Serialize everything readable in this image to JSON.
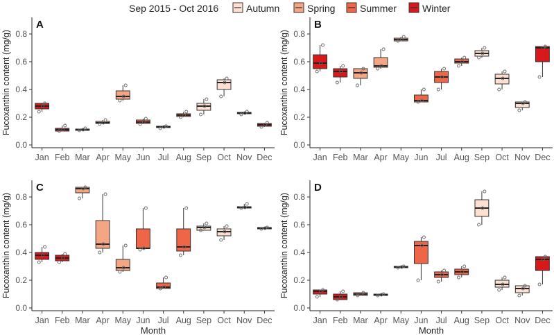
{
  "chart_data": {
    "type": "boxplot",
    "legend": {
      "title": "Sep 2015 - Oct 2016",
      "position": "top",
      "entries": [
        {
          "name": "Autumn",
          "color": "#FDE0D2"
        },
        {
          "name": "Spring",
          "color": "#F4A583"
        },
        {
          "name": "Summer",
          "color": "#EF6548"
        },
        {
          "name": "Winter",
          "color": "#D7191C"
        }
      ]
    },
    "categories": [
      "Jan",
      "Feb",
      "Mar",
      "Apr",
      "May",
      "Jun",
      "Jul",
      "Aug",
      "Sep",
      "Oct",
      "Nov",
      "Dec"
    ],
    "month_season": [
      "Winter",
      "Winter",
      "Spring",
      "Spring",
      "Spring",
      "Summer",
      "Summer",
      "Summer",
      "Autumn",
      "Autumn",
      "Autumn",
      "Winter"
    ],
    "ylabel": "Fucoxanthin content (mg/g)",
    "xlabel": "Month",
    "ylim": [
      -0.02,
      0.92
    ],
    "yticks": [
      "0.0",
      "0.2",
      "0.4",
      "0.6",
      "0.8"
    ],
    "ytick_values": [
      0,
      0.2,
      0.4,
      0.6,
      0.8
    ],
    "panels": [
      {
        "label": "A",
        "boxes": [
          {
            "q1": 0.26,
            "med": 0.28,
            "q3": 0.3,
            "wlo": 0.24,
            "whi": 0.3,
            "pts": [
              0.24,
              0.28,
              0.3
            ]
          },
          {
            "q1": 0.1,
            "med": 0.11,
            "q3": 0.12,
            "wlo": 0.1,
            "whi": 0.14,
            "pts": [
              0.1,
              0.11,
              0.14
            ]
          },
          {
            "q1": 0.105,
            "med": 0.11,
            "q3": 0.115,
            "wlo": 0.1,
            "whi": 0.12,
            "pts": [
              0.105,
              0.11,
              0.12
            ]
          },
          {
            "q1": 0.155,
            "med": 0.16,
            "q3": 0.17,
            "wlo": 0.15,
            "whi": 0.18,
            "pts": [
              0.15,
              0.16,
              0.18
            ]
          },
          {
            "q1": 0.33,
            "med": 0.35,
            "q3": 0.39,
            "wlo": 0.32,
            "whi": 0.43,
            "pts": [
              0.32,
              0.35,
              0.43
            ]
          },
          {
            "q1": 0.155,
            "med": 0.165,
            "q3": 0.18,
            "wlo": 0.15,
            "whi": 0.19,
            "pts": [
              0.15,
              0.165,
              0.19
            ]
          },
          {
            "q1": 0.125,
            "med": 0.13,
            "q3": 0.135,
            "wlo": 0.12,
            "whi": 0.135,
            "pts": [
              0.12,
              0.13,
              0.135
            ]
          },
          {
            "q1": 0.205,
            "med": 0.215,
            "q3": 0.225,
            "wlo": 0.2,
            "whi": 0.24,
            "pts": [
              0.2,
              0.215,
              0.24
            ]
          },
          {
            "q1": 0.25,
            "med": 0.28,
            "q3": 0.3,
            "wlo": 0.22,
            "whi": 0.33,
            "pts": [
              0.22,
              0.28,
              0.33
            ]
          },
          {
            "q1": 0.4,
            "med": 0.45,
            "q3": 0.47,
            "wlo": 0.35,
            "whi": 0.48,
            "pts": [
              0.35,
              0.45,
              0.48
            ]
          },
          {
            "q1": 0.225,
            "med": 0.23,
            "q3": 0.235,
            "wlo": 0.22,
            "whi": 0.24,
            "pts": [
              0.22,
              0.23,
              0.24
            ]
          },
          {
            "q1": 0.135,
            "med": 0.145,
            "q3": 0.155,
            "wlo": 0.13,
            "whi": 0.16,
            "pts": [
              0.13,
              0.145,
              0.16
            ]
          }
        ]
      },
      {
        "label": "B",
        "boxes": [
          {
            "q1": 0.55,
            "med": 0.59,
            "q3": 0.65,
            "wlo": 0.53,
            "whi": 0.72,
            "pts": [
              0.53,
              0.59,
              0.72
            ]
          },
          {
            "q1": 0.49,
            "med": 0.53,
            "q3": 0.55,
            "wlo": 0.45,
            "whi": 0.57,
            "pts": [
              0.45,
              0.53,
              0.57
            ]
          },
          {
            "q1": 0.48,
            "med": 0.52,
            "q3": 0.55,
            "wlo": 0.43,
            "whi": 0.55,
            "pts": [
              0.43,
              0.52,
              0.55
            ]
          },
          {
            "q1": 0.56,
            "med": 0.57,
            "q3": 0.63,
            "wlo": 0.55,
            "whi": 0.69,
            "pts": [
              0.55,
              0.57,
              0.69
            ]
          },
          {
            "q1": 0.75,
            "med": 0.76,
            "q3": 0.77,
            "wlo": 0.75,
            "whi": 0.78,
            "pts": [
              0.75,
              0.76,
              0.78
            ]
          },
          {
            "q1": 0.31,
            "med": 0.32,
            "q3": 0.36,
            "wlo": 0.31,
            "whi": 0.4,
            "pts": [
              0.31,
              0.32,
              0.4
            ]
          },
          {
            "q1": 0.45,
            "med": 0.49,
            "q3": 0.53,
            "wlo": 0.4,
            "whi": 0.55,
            "pts": [
              0.4,
              0.49,
              0.55
            ]
          },
          {
            "q1": 0.59,
            "med": 0.6,
            "q3": 0.62,
            "wlo": 0.57,
            "whi": 0.63,
            "pts": [
              0.57,
              0.6,
              0.63
            ]
          },
          {
            "q1": 0.64,
            "med": 0.66,
            "q3": 0.68,
            "wlo": 0.63,
            "whi": 0.7,
            "pts": [
              0.63,
              0.66,
              0.7
            ]
          },
          {
            "q1": 0.44,
            "med": 0.48,
            "q3": 0.51,
            "wlo": 0.4,
            "whi": 0.53,
            "pts": [
              0.4,
              0.48,
              0.53
            ]
          },
          {
            "q1": 0.27,
            "med": 0.3,
            "q3": 0.31,
            "wlo": 0.25,
            "whi": 0.31,
            "pts": [
              0.25,
              0.3,
              0.31
            ]
          },
          {
            "q1": 0.6,
            "med": 0.7,
            "q3": 0.71,
            "wlo": 0.49,
            "whi": 0.71,
            "pts": [
              0.49,
              0.7,
              0.71
            ]
          }
        ]
      },
      {
        "label": "C",
        "boxes": [
          {
            "q1": 0.35,
            "med": 0.38,
            "q3": 0.4,
            "wlo": 0.33,
            "whi": 0.44,
            "pts": [
              0.33,
              0.38,
              0.44
            ]
          },
          {
            "q1": 0.34,
            "med": 0.36,
            "q3": 0.38,
            "wlo": 0.33,
            "whi": 0.39,
            "pts": [
              0.33,
              0.36,
              0.39
            ]
          },
          {
            "q1": 0.83,
            "med": 0.86,
            "q3": 0.87,
            "wlo": 0.79,
            "whi": 0.87,
            "pts": [
              0.79,
              0.86,
              0.87
            ]
          },
          {
            "q1": 0.43,
            "med": 0.46,
            "q3": 0.63,
            "wlo": 0.4,
            "whi": 0.82,
            "pts": [
              0.4,
              0.46,
              0.82
            ]
          },
          {
            "q1": 0.27,
            "med": 0.29,
            "q3": 0.35,
            "wlo": 0.26,
            "whi": 0.45,
            "pts": [
              0.26,
              0.29,
              0.45
            ]
          },
          {
            "q1": 0.43,
            "med": 0.43,
            "q3": 0.57,
            "wlo": 0.42,
            "whi": 0.72,
            "pts": [
              0.42,
              0.43,
              0.72
            ]
          },
          {
            "q1": 0.14,
            "med": 0.15,
            "q3": 0.18,
            "wlo": 0.14,
            "whi": 0.22,
            "pts": [
              0.14,
              0.15,
              0.22
            ]
          },
          {
            "q1": 0.41,
            "med": 0.44,
            "q3": 0.57,
            "wlo": 0.38,
            "whi": 0.72,
            "pts": [
              0.38,
              0.44,
              0.72
            ]
          },
          {
            "q1": 0.56,
            "med": 0.58,
            "q3": 0.59,
            "wlo": 0.56,
            "whi": 0.61,
            "pts": [
              0.56,
              0.58,
              0.61
            ]
          },
          {
            "q1": 0.52,
            "med": 0.55,
            "q3": 0.57,
            "wlo": 0.49,
            "whi": 0.59,
            "pts": [
              0.49,
              0.55,
              0.59
            ]
          },
          {
            "q1": 0.72,
            "med": 0.725,
            "q3": 0.73,
            "wlo": 0.72,
            "whi": 0.75,
            "pts": [
              0.72,
              0.725,
              0.75
            ]
          },
          {
            "q1": 0.57,
            "med": 0.575,
            "q3": 0.58,
            "wlo": 0.57,
            "whi": 0.58,
            "pts": [
              0.57,
              0.575,
              0.58
            ]
          }
        ]
      },
      {
        "label": "D",
        "boxes": [
          {
            "q1": 0.1,
            "med": 0.12,
            "q3": 0.13,
            "wlo": 0.08,
            "whi": 0.13,
            "pts": [
              0.08,
              0.12,
              0.13
            ]
          },
          {
            "q1": 0.06,
            "med": 0.08,
            "q3": 0.1,
            "wlo": 0.06,
            "whi": 0.12,
            "pts": [
              0.06,
              0.08,
              0.12
            ]
          },
          {
            "q1": 0.09,
            "med": 0.1,
            "q3": 0.11,
            "wlo": 0.09,
            "whi": 0.11,
            "pts": [
              0.09,
              0.1,
              0.11
            ]
          },
          {
            "q1": 0.09,
            "med": 0.095,
            "q3": 0.1,
            "wlo": 0.09,
            "whi": 0.1,
            "pts": [
              0.09,
              0.095,
              0.1
            ]
          },
          {
            "q1": 0.29,
            "med": 0.295,
            "q3": 0.3,
            "wlo": 0.29,
            "whi": 0.3,
            "pts": [
              0.29,
              0.295,
              0.3
            ]
          },
          {
            "q1": 0.32,
            "med": 0.45,
            "q3": 0.48,
            "wlo": 0.2,
            "whi": 0.51,
            "pts": [
              0.2,
              0.45,
              0.51
            ]
          },
          {
            "q1": 0.22,
            "med": 0.24,
            "q3": 0.26,
            "wlo": 0.19,
            "whi": 0.27,
            "pts": [
              0.19,
              0.24,
              0.27
            ]
          },
          {
            "q1": 0.24,
            "med": 0.26,
            "q3": 0.28,
            "wlo": 0.22,
            "whi": 0.3,
            "pts": [
              0.22,
              0.26,
              0.3
            ]
          },
          {
            "q1": 0.66,
            "med": 0.72,
            "q3": 0.78,
            "wlo": 0.6,
            "whi": 0.84,
            "pts": [
              0.6,
              0.72,
              0.84
            ]
          },
          {
            "q1": 0.15,
            "med": 0.17,
            "q3": 0.2,
            "wlo": 0.13,
            "whi": 0.22,
            "pts": [
              0.13,
              0.17,
              0.22
            ]
          },
          {
            "q1": 0.11,
            "med": 0.14,
            "q3": 0.16,
            "wlo": 0.09,
            "whi": 0.16,
            "pts": [
              0.09,
              0.14,
              0.16
            ]
          },
          {
            "q1": 0.27,
            "med": 0.35,
            "q3": 0.37,
            "wlo": 0.17,
            "whi": 0.37,
            "pts": [
              0.17,
              0.35,
              0.37
            ]
          }
        ]
      }
    ]
  }
}
